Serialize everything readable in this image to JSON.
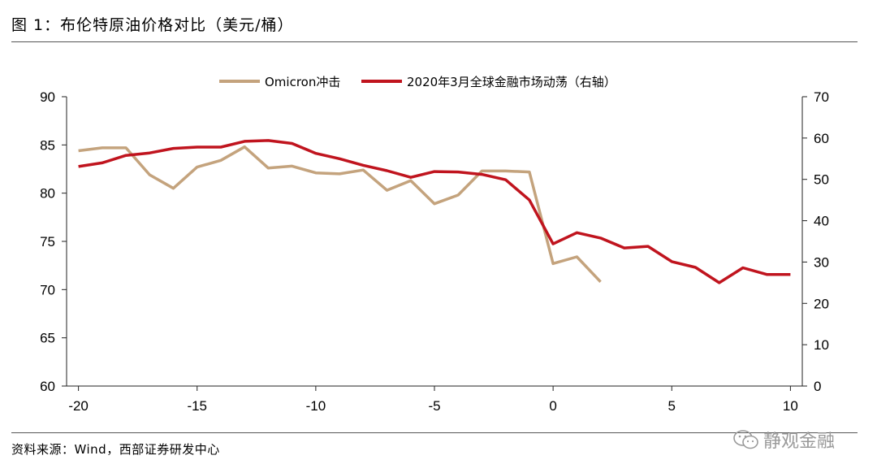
{
  "figure": {
    "title": "图 1：布伦特原油价格对比（美元/桶）",
    "source": "资料来源：Wind，西部证券研发中心",
    "watermark": "静观金融"
  },
  "colors": {
    "omicron": "#c4a37d",
    "covid": "#c0141e",
    "axis": "#222222"
  },
  "chart_data": {
    "type": "line",
    "title": "",
    "xlabel": "",
    "ylabel": "",
    "xlim": [
      -20.5,
      10.5
    ],
    "xticks": [
      "-20",
      "-15",
      "-10",
      "-5",
      "0",
      "5",
      "10"
    ],
    "ylim_left": [
      60,
      90
    ],
    "yticks_left": [
      "60",
      "65",
      "70",
      "75",
      "80",
      "85",
      "90"
    ],
    "ylim_right": [
      0,
      70
    ],
    "yticks_right": [
      "0",
      "10",
      "20",
      "30",
      "40",
      "50",
      "60",
      "70"
    ],
    "grid": false,
    "legend_position": "top",
    "series": [
      {
        "name": "Omicron冲击",
        "axis": "left",
        "x": [
          -20,
          -19,
          -18,
          -17,
          -16,
          -15,
          -14,
          -13,
          -12,
          -11,
          -10,
          -9,
          -8,
          -7,
          -6,
          -5,
          -4,
          -3,
          -2,
          -1,
          0,
          1,
          2
        ],
        "values": [
          84.4,
          84.7,
          84.7,
          81.9,
          80.5,
          82.7,
          83.4,
          84.8,
          82.6,
          82.8,
          82.1,
          82.0,
          82.4,
          80.3,
          81.3,
          78.9,
          79.8,
          82.3,
          82.3,
          82.2,
          72.7,
          73.4,
          70.8
        ]
      },
      {
        "name": "2020年3月全球金融市场动荡（右轴）",
        "axis": "right",
        "x": [
          -20,
          -19,
          -18,
          -17,
          -16,
          -15,
          -14,
          -13,
          -12,
          -11,
          -10,
          -9,
          -8,
          -7,
          -6,
          -5,
          -4,
          -3,
          -2,
          -1,
          0,
          1,
          2,
          3,
          4,
          5,
          6,
          7,
          8,
          9,
          10
        ],
        "values": [
          53.1,
          54.0,
          55.8,
          56.4,
          57.5,
          57.8,
          57.8,
          59.2,
          59.4,
          58.7,
          56.3,
          55.0,
          53.4,
          52.1,
          50.5,
          51.9,
          51.8,
          51.2,
          49.9,
          45.0,
          34.4,
          37.1,
          35.8,
          33.4,
          33.8,
          30.1,
          28.7,
          25.0,
          28.6,
          27.0,
          27.0
        ]
      }
    ]
  }
}
